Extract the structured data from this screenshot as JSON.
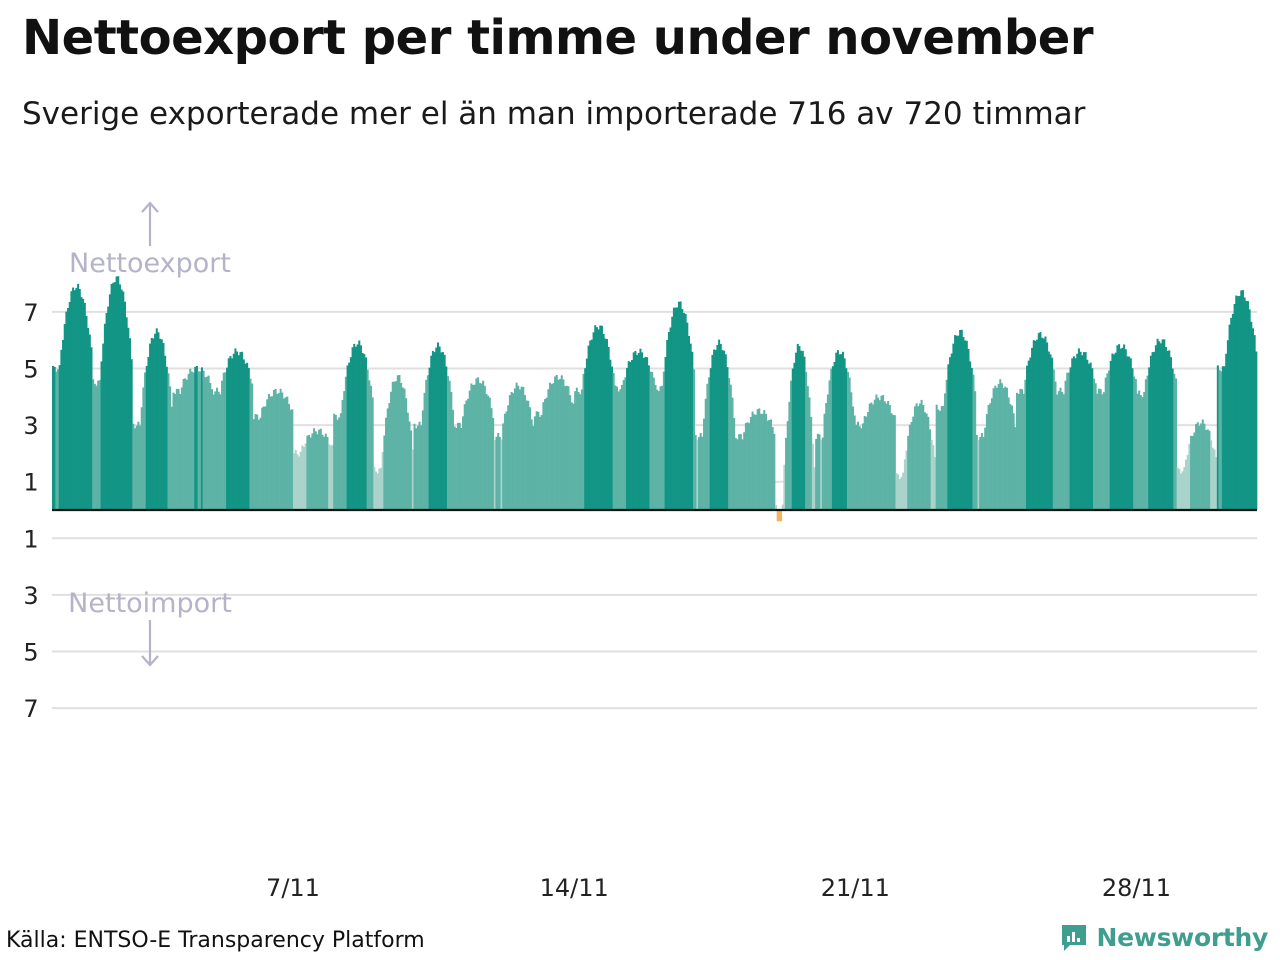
{
  "header": {
    "title": "Nettoexport per timme under november",
    "subtitle": "Sverige exporterade mer el än man importerade 716 av 720 timmar"
  },
  "footer": {
    "source": "Källa: ENTSO-E Transparency Platform",
    "brand": "Newsworthy",
    "brand_icon": "newsworthy-logo-icon"
  },
  "colors": {
    "export_high": "#129585",
    "export_mid": "#5db3a5",
    "export_low": "#a9d3cb",
    "import": "#f6b45a",
    "baseline": "#111111",
    "grid": "#e0e0e0",
    "annotation": "#b5b3c9",
    "brand": "#3f9e8f"
  },
  "chart_data": {
    "type": "bar",
    "title": "Nettoexport per timme under november",
    "subtitle": "Sverige exporterade mer el än man importerade 716 av 720 timmar",
    "x_unit": "timme",
    "x_ticks": [
      {
        "hour": 144,
        "label": "7/11"
      },
      {
        "hour": 312,
        "label": "14/11"
      },
      {
        "hour": 480,
        "label": "21/11"
      },
      {
        "hour": 648,
        "label": "28/11"
      }
    ],
    "y_ticks": [
      {
        "value": 7,
        "label": "7"
      },
      {
        "value": 5,
        "label": "5"
      },
      {
        "value": 3,
        "label": "3"
      },
      {
        "value": 1,
        "label": "1"
      },
      {
        "value": -1,
        "label": "1"
      },
      {
        "value": -3,
        "label": "3"
      },
      {
        "value": -5,
        "label": "5"
      },
      {
        "value": -7,
        "label": "7"
      }
    ],
    "ylim": [
      -9,
      9
    ],
    "grid": true,
    "annotations": {
      "export": "Nettoexport",
      "import": "Nettoimport"
    },
    "days": [
      {
        "day": 1,
        "night": 5.0,
        "peak": 7.9
      },
      {
        "day": 2,
        "night": 4.5,
        "peak": 8.2
      },
      {
        "day": 3,
        "night": 3.0,
        "peak": 6.3
      },
      {
        "day": 4,
        "night": 4.2,
        "peak": 5.0
      },
      {
        "day": 5,
        "night": 4.2,
        "peak": 5.6
      },
      {
        "day": 6,
        "night": 3.3,
        "peak": 4.2
      },
      {
        "day": 7,
        "night": 2.0,
        "peak": 2.8
      },
      {
        "day": 8,
        "night": 3.3,
        "peak": 5.9
      },
      {
        "day": 9,
        "night": 1.4,
        "peak": 4.7
      },
      {
        "day": 10,
        "night": 3.0,
        "peak": 5.8
      },
      {
        "day": 11,
        "night": 3.0,
        "peak": 4.6
      },
      {
        "day": 12,
        "night": 2.6,
        "peak": 4.4
      },
      {
        "day": 13,
        "night": 3.4,
        "peak": 4.7
      },
      {
        "day": 14,
        "night": 4.2,
        "peak": 6.5
      },
      {
        "day": 15,
        "night": 4.3,
        "peak": 5.6
      },
      {
        "day": 16,
        "night": 4.3,
        "peak": 7.3
      },
      {
        "day": 17,
        "night": 2.6,
        "peak": 5.9
      },
      {
        "day": 18,
        "night": 2.6,
        "peak": 3.5
      },
      {
        "day": 19,
        "night": 0.3,
        "peak": 5.8,
        "min": -0.4
      },
      {
        "day": 20,
        "night": 2.6,
        "peak": 5.6
      },
      {
        "day": 21,
        "night": 3.0,
        "peak": 4.0
      },
      {
        "day": 22,
        "night": 1.2,
        "peak": 3.8
      },
      {
        "day": 23,
        "night": 3.6,
        "peak": 6.3
      },
      {
        "day": 24,
        "night": 2.6,
        "peak": 4.5
      },
      {
        "day": 25,
        "night": 4.2,
        "peak": 6.2
      },
      {
        "day": 26,
        "night": 4.2,
        "peak": 5.6
      },
      {
        "day": 27,
        "night": 4.2,
        "peak": 5.8
      },
      {
        "day": 28,
        "night": 4.1,
        "peak": 6.0
      },
      {
        "day": 29,
        "night": 1.4,
        "peak": 3.1
      },
      {
        "day": 30,
        "night": 5.0,
        "peak": 7.7
      }
    ],
    "summary": {
      "export_hours": 716,
      "total_hours": 720
    }
  }
}
